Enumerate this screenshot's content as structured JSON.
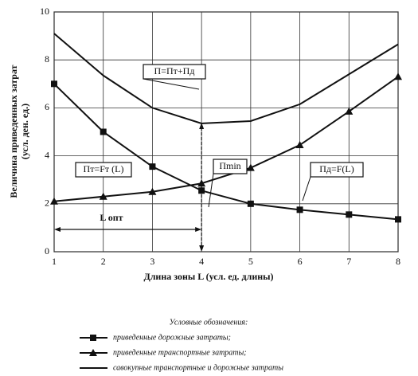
{
  "chart_data": {
    "type": "line",
    "x": [
      1,
      2,
      3,
      4,
      5,
      6,
      7,
      8
    ],
    "series": [
      {
        "name": "приведенные дорожные затраты;",
        "color": "#111111",
        "marker": "square",
        "values": [
          7.0,
          5.0,
          3.55,
          2.55,
          2.0,
          1.75,
          1.55,
          1.35
        ]
      },
      {
        "name": "приведенные транспортные затраты;",
        "color": "#111111",
        "marker": "triangle",
        "values": [
          2.1,
          2.3,
          2.5,
          2.85,
          3.5,
          4.45,
          5.85,
          7.3
        ]
      },
      {
        "name": "савокупные транспортные и дорожные затраты",
        "color": "#111111",
        "marker": "none",
        "values": [
          9.1,
          7.35,
          6.0,
          5.35,
          5.45,
          6.15,
          7.4,
          8.65
        ]
      }
    ],
    "xlim": [
      1,
      8
    ],
    "ylim": [
      0,
      10
    ],
    "xticks": [
      1,
      2,
      3,
      4,
      5,
      6,
      7,
      8
    ],
    "yticks": [
      0,
      2,
      4,
      6,
      8,
      10
    ],
    "grid": true,
    "x_label": "Длина зоны L (усл. ед. длины)",
    "y_label": [
      "Величина приведенных затрат",
      "(усл. ден. ед.)"
    ],
    "annotations": [
      "П=Пт+Пд",
      "Пт=Fт (L)",
      "Пmin",
      "Пд=F(L)",
      "L опт"
    ],
    "legend_title": "Условные обозначения:"
  }
}
